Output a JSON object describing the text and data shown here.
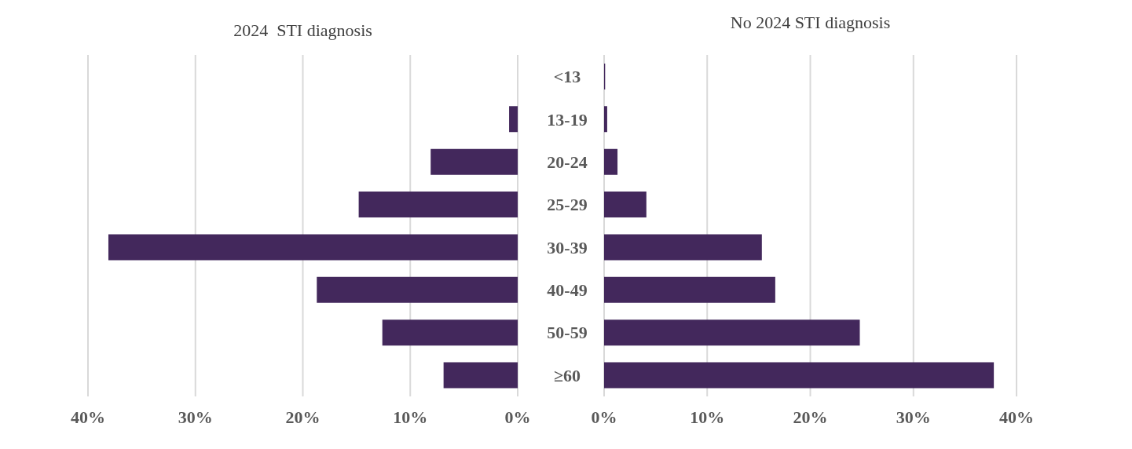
{
  "chart_data": [
    {
      "type": "bar",
      "orientation": "horizontal",
      "title": "2024  STI diagnosis",
      "categories": [
        "<13",
        "13-19",
        "20-24",
        "25-29",
        "30-39",
        "40-49",
        "50-59",
        "≥60"
      ],
      "values": [
        0,
        0.8,
        8.1,
        14.8,
        38.1,
        18.7,
        12.6,
        6.9
      ],
      "color": "#43285c",
      "xlim": [
        40,
        0
      ],
      "xticks": [
        {
          "value": 40,
          "label": "40%"
        },
        {
          "value": 30,
          "label": "30%"
        },
        {
          "value": 20,
          "label": "20%"
        },
        {
          "value": 10,
          "label": "10%"
        },
        {
          "value": 0,
          "label": "0%"
        }
      ],
      "grid": "x"
    },
    {
      "type": "bar",
      "orientation": "horizontal",
      "title": "No 2024 STI diagnosis",
      "categories": [
        null,
        null,
        null,
        null,
        null,
        null,
        null,
        null
      ],
      "values": [
        0.1,
        0.3,
        1.3,
        4.1,
        15.3,
        16.6,
        24.8,
        37.8
      ],
      "color": "#43285c",
      "xlim": [
        0,
        40
      ],
      "xticks": [
        {
          "value": 0,
          "label": "0%"
        },
        {
          "value": 10,
          "label": "10%"
        },
        {
          "value": 20,
          "label": "20%"
        },
        {
          "value": 30,
          "label": "30%"
        },
        {
          "value": 40,
          "label": "40%"
        }
      ],
      "grid": "x",
      "tick_labels": "x"
    }
  ]
}
